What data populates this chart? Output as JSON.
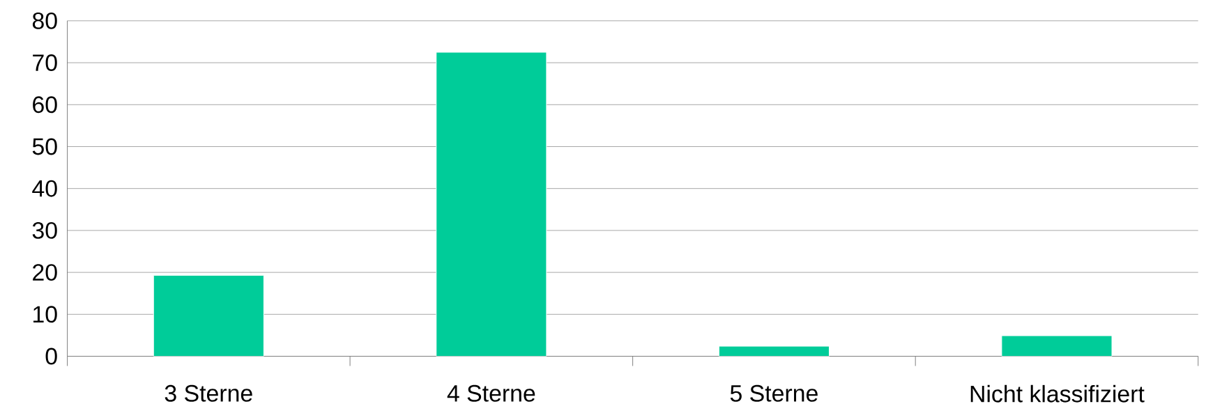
{
  "chart_data": {
    "type": "bar",
    "categories": [
      "3 Sterne",
      "4 Sterne",
      "5 Sterne",
      "Nicht klassifiziert"
    ],
    "values": [
      19.3,
      72.5,
      2.4,
      4.9
    ],
    "color": "#00cc99",
    "ylim": [
      0,
      80
    ],
    "yticks": [
      0,
      10,
      20,
      30,
      40,
      50,
      60,
      70,
      80
    ],
    "grid": "y"
  }
}
